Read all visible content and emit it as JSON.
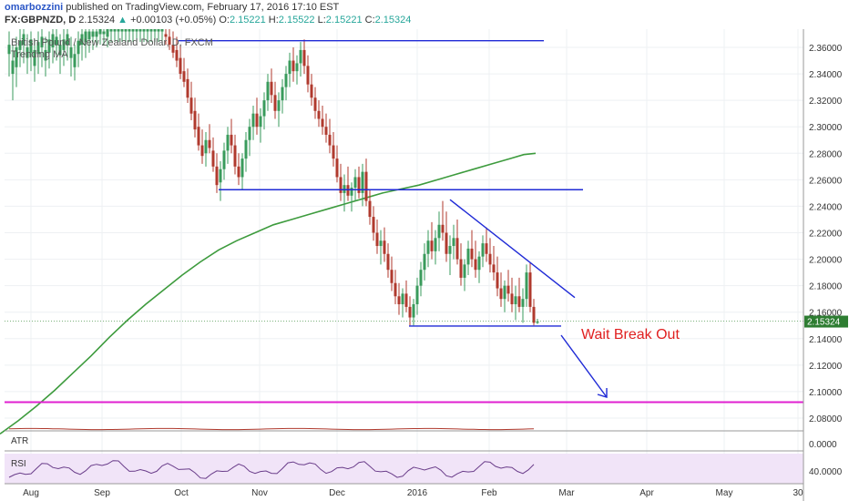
{
  "header": {
    "author": "omarbozzini",
    "published": "published on TradingView.com, February 17, 2016 17:10 EST",
    "symbol": "FX:GBPNZD, D",
    "last": "2.15324",
    "change": "+0.00103 (+0.05%)",
    "o_label": "O:",
    "o": "2.15221",
    "h_label": "H:",
    "h": "2.15522",
    "l_label": "L:",
    "l": "2.15221",
    "c_label": "C:",
    "c": "2.15324"
  },
  "colors": {
    "up": "#26a69a",
    "bull_candle": "#3a9b5c",
    "bear_candle": "#b03a2e",
    "ma": "#3d9b3d",
    "trendline": "#1f2ad6",
    "support_magenta": "#e020d0",
    "annotation": "#e02020",
    "price_tag": "#2e7d32",
    "rsi_band": "#f0e0f8"
  },
  "chart_data": {
    "type": "candlestick",
    "title": "British Pound / New Zealand Dollar, D, FXCM",
    "indicator_label": "Trending MA",
    "x_labels": [
      "Aug",
      "Sep",
      "Oct",
      "Nov",
      "Dec",
      "2016",
      "Feb",
      "Mar",
      "Apr",
      "May",
      "30"
    ],
    "y_ticks": [
      "2.36000",
      "2.34000",
      "2.32000",
      "2.30000",
      "2.28000",
      "2.26000",
      "2.24000",
      "2.22000",
      "2.20000",
      "2.18000",
      "2.16000",
      "2.14000",
      "2.12000",
      "2.10000",
      "2.08000"
    ],
    "ylim": [
      2.065,
      2.375
    ],
    "current_price_tag": "2.15324",
    "annotation": "Wait Break Out",
    "resistance_levels": [
      2.365,
      2.2525
    ],
    "support_level": 2.1495,
    "target_level": 2.092,
    "ma_points": [
      [
        0,
        2.068
      ],
      [
        20,
        2.078
      ],
      [
        40,
        2.089
      ],
      [
        60,
        2.101
      ],
      [
        80,
        2.114
      ],
      [
        100,
        2.127
      ],
      [
        120,
        2.141
      ],
      [
        140,
        2.154
      ],
      [
        160,
        2.166
      ],
      [
        180,
        2.177
      ],
      [
        200,
        2.188
      ],
      [
        220,
        2.198
      ],
      [
        240,
        2.207
      ],
      [
        260,
        2.214
      ],
      [
        280,
        2.22
      ],
      [
        300,
        2.226
      ],
      [
        320,
        2.23
      ],
      [
        340,
        2.234
      ],
      [
        360,
        2.238
      ],
      [
        380,
        2.242
      ],
      [
        400,
        2.246
      ],
      [
        420,
        2.25
      ],
      [
        440,
        2.253
      ],
      [
        460,
        2.256
      ],
      [
        480,
        2.26
      ],
      [
        500,
        2.264
      ],
      [
        520,
        2.268
      ],
      [
        540,
        2.272
      ],
      [
        560,
        2.276
      ],
      [
        575,
        2.279
      ],
      [
        588,
        2.28
      ]
    ],
    "candles": [
      [
        10,
        2.355,
        2.372,
        2.338,
        2.362
      ],
      [
        14,
        2.34,
        2.362,
        2.32,
        2.35
      ],
      [
        18,
        2.345,
        2.368,
        2.33,
        2.36
      ],
      [
        22,
        2.358,
        2.375,
        2.345,
        2.365
      ],
      [
        26,
        2.362,
        2.376,
        2.348,
        2.37
      ],
      [
        30,
        2.352,
        2.37,
        2.34,
        2.36
      ],
      [
        34,
        2.356,
        2.372,
        2.342,
        2.366
      ],
      [
        38,
        2.346,
        2.366,
        2.334,
        2.358
      ],
      [
        42,
        2.355,
        2.372,
        2.34,
        2.364
      ],
      [
        46,
        2.36,
        2.376,
        2.345,
        2.368
      ],
      [
        50,
        2.35,
        2.368,
        2.338,
        2.358
      ],
      [
        54,
        2.356,
        2.372,
        2.344,
        2.366
      ],
      [
        58,
        2.36,
        2.375,
        2.348,
        2.37
      ],
      [
        62,
        2.362,
        2.376,
        2.35,
        2.368
      ],
      [
        66,
        2.354,
        2.37,
        2.34,
        2.362
      ],
      [
        70,
        2.358,
        2.374,
        2.346,
        2.366
      ],
      [
        74,
        2.362,
        2.376,
        2.35,
        2.37
      ],
      [
        78,
        2.352,
        2.368,
        2.338,
        2.36
      ],
      [
        82,
        2.345,
        2.362,
        2.335,
        2.355
      ],
      [
        86,
        2.355,
        2.372,
        2.345,
        2.365
      ],
      [
        90,
        2.362,
        2.376,
        2.35,
        2.37
      ],
      [
        94,
        2.364,
        2.376,
        2.352,
        2.372
      ],
      [
        98,
        2.366,
        2.376,
        2.356,
        2.372
      ],
      [
        102,
        2.368,
        2.376,
        2.358,
        2.372
      ],
      [
        106,
        2.368,
        2.376,
        2.36,
        2.372
      ],
      [
        110,
        2.37,
        2.376,
        2.362,
        2.374
      ],
      [
        114,
        2.37,
        2.376,
        2.362,
        2.372
      ],
      [
        118,
        2.368,
        2.376,
        2.36,
        2.374
      ],
      [
        122,
        2.372,
        2.376,
        2.364,
        2.374
      ],
      [
        126,
        2.372,
        2.376,
        2.364,
        2.374
      ],
      [
        130,
        2.372,
        2.376,
        2.364,
        2.374
      ],
      [
        134,
        2.372,
        2.376,
        2.364,
        2.374
      ],
      [
        138,
        2.372,
        2.376,
        2.364,
        2.374
      ],
      [
        142,
        2.372,
        2.376,
        2.364,
        2.374
      ],
      [
        146,
        2.372,
        2.376,
        2.364,
        2.374
      ],
      [
        150,
        2.372,
        2.376,
        2.364,
        2.374
      ],
      [
        154,
        2.372,
        2.376,
        2.364,
        2.374
      ],
      [
        158,
        2.372,
        2.376,
        2.364,
        2.374
      ],
      [
        162,
        2.372,
        2.376,
        2.364,
        2.374
      ],
      [
        166,
        2.372,
        2.376,
        2.364,
        2.374
      ],
      [
        170,
        2.372,
        2.376,
        2.364,
        2.374
      ],
      [
        174,
        2.372,
        2.376,
        2.364,
        2.374
      ],
      [
        178,
        2.372,
        2.376,
        2.364,
        2.374
      ],
      [
        182,
        2.37,
        2.376,
        2.362,
        2.368
      ],
      [
        186,
        2.368,
        2.376,
        2.358,
        2.362
      ],
      [
        190,
        2.362,
        2.372,
        2.352,
        2.356
      ],
      [
        194,
        2.358,
        2.368,
        2.345,
        2.35
      ],
      [
        198,
        2.352,
        2.362,
        2.336,
        2.34
      ],
      [
        202,
        2.342,
        2.352,
        2.33,
        2.334
      ],
      [
        206,
        2.336,
        2.344,
        2.318,
        2.322
      ],
      [
        210,
        2.322,
        2.334,
        2.305,
        2.31
      ],
      [
        214,
        2.312,
        2.322,
        2.292,
        2.298
      ],
      [
        218,
        2.3,
        2.31,
        2.282,
        2.286
      ],
      [
        222,
        2.286,
        2.298,
        2.272,
        2.278
      ],
      [
        226,
        2.28,
        2.296,
        2.27,
        2.29
      ],
      [
        230,
        2.29,
        2.302,
        2.28,
        2.284
      ],
      [
        234,
        2.282,
        2.292,
        2.266,
        2.27
      ],
      [
        238,
        2.27,
        2.28,
        2.25,
        2.256
      ],
      [
        242,
        2.258,
        2.274,
        2.244,
        2.268
      ],
      [
        246,
        2.268,
        2.288,
        2.26,
        2.282
      ],
      [
        250,
        2.282,
        2.3,
        2.272,
        2.294
      ],
      [
        254,
        2.294,
        2.306,
        2.28,
        2.286
      ],
      [
        258,
        2.286,
        2.294,
        2.264,
        2.27
      ],
      [
        262,
        2.27,
        2.28,
        2.256,
        2.262
      ],
      [
        266,
        2.262,
        2.28,
        2.252,
        2.276
      ],
      [
        270,
        2.276,
        2.296,
        2.266,
        2.29
      ],
      [
        274,
        2.29,
        2.306,
        2.278,
        2.3
      ],
      [
        278,
        2.3,
        2.316,
        2.29,
        2.31
      ],
      [
        282,
        2.31,
        2.322,
        2.294,
        2.3
      ],
      [
        286,
        2.3,
        2.314,
        2.288,
        2.308
      ],
      [
        290,
        2.308,
        2.326,
        2.298,
        2.32
      ],
      [
        294,
        2.32,
        2.34,
        2.312,
        2.334
      ],
      [
        298,
        2.334,
        2.344,
        2.318,
        2.324
      ],
      [
        302,
        2.324,
        2.334,
        2.306,
        2.312
      ],
      [
        306,
        2.312,
        2.326,
        2.3,
        2.32
      ],
      [
        310,
        2.32,
        2.336,
        2.31,
        2.33
      ],
      [
        314,
        2.33,
        2.346,
        2.32,
        2.34
      ],
      [
        318,
        2.34,
        2.356,
        2.33,
        2.35
      ],
      [
        322,
        2.35,
        2.36,
        2.334,
        2.342
      ],
      [
        326,
        2.342,
        2.354,
        2.332,
        2.348
      ],
      [
        330,
        2.348,
        2.364,
        2.338,
        2.358
      ],
      [
        334,
        2.358,
        2.366,
        2.34,
        2.346
      ],
      [
        338,
        2.346,
        2.354,
        2.326,
        2.332
      ],
      [
        342,
        2.332,
        2.34,
        2.316,
        2.322
      ],
      [
        346,
        2.322,
        2.33,
        2.306,
        2.312
      ],
      [
        350,
        2.312,
        2.32,
        2.3,
        2.306
      ],
      [
        354,
        2.306,
        2.316,
        2.294,
        2.3
      ],
      [
        358,
        2.3,
        2.31,
        2.288,
        2.294
      ],
      [
        362,
        2.294,
        2.306,
        2.28,
        2.286
      ],
      [
        366,
        2.286,
        2.296,
        2.27,
        2.276
      ],
      [
        370,
        2.276,
        2.286,
        2.258,
        2.262
      ],
      [
        374,
        2.262,
        2.272,
        2.244,
        2.25
      ],
      [
        378,
        2.25,
        2.264,
        2.236,
        2.256
      ],
      [
        382,
        2.256,
        2.27,
        2.244,
        2.248
      ],
      [
        386,
        2.248,
        2.258,
        2.236,
        2.254
      ],
      [
        390,
        2.254,
        2.268,
        2.244,
        2.262
      ],
      [
        394,
        2.262,
        2.27,
        2.246,
        2.25
      ],
      [
        398,
        2.25,
        2.272,
        2.24,
        2.266
      ],
      [
        402,
        2.266,
        2.276,
        2.24,
        2.244
      ],
      [
        406,
        2.244,
        2.252,
        2.226,
        2.232
      ],
      [
        410,
        2.232,
        2.24,
        2.214,
        2.22
      ],
      [
        414,
        2.22,
        2.23,
        2.204,
        2.21
      ],
      [
        418,
        2.21,
        2.222,
        2.196,
        2.214
      ],
      [
        422,
        2.214,
        2.224,
        2.198,
        2.204
      ],
      [
        426,
        2.204,
        2.212,
        2.186,
        2.192
      ],
      [
        430,
        2.192,
        2.202,
        2.176,
        2.182
      ],
      [
        434,
        2.182,
        2.192,
        2.166,
        2.172
      ],
      [
        438,
        2.172,
        2.182,
        2.158,
        2.166
      ],
      [
        442,
        2.166,
        2.178,
        2.156,
        2.174
      ],
      [
        446,
        2.174,
        2.184,
        2.16,
        2.164
      ],
      [
        450,
        2.164,
        2.172,
        2.15,
        2.156
      ],
      [
        454,
        2.156,
        2.17,
        2.15,
        2.166
      ],
      [
        458,
        2.166,
        2.186,
        2.158,
        2.18
      ],
      [
        462,
        2.18,
        2.198,
        2.172,
        2.192
      ],
      [
        466,
        2.192,
        2.212,
        2.184,
        2.204
      ],
      [
        470,
        2.204,
        2.222,
        2.194,
        2.214
      ],
      [
        474,
        2.214,
        2.228,
        2.2,
        2.206
      ],
      [
        478,
        2.206,
        2.222,
        2.196,
        2.216
      ],
      [
        482,
        2.216,
        2.236,
        2.206,
        2.226
      ],
      [
        486,
        2.226,
        2.244,
        2.214,
        2.22
      ],
      [
        490,
        2.22,
        2.236,
        2.198,
        2.204
      ],
      [
        494,
        2.204,
        2.218,
        2.188,
        2.21
      ],
      [
        498,
        2.21,
        2.226,
        2.2,
        2.216
      ],
      [
        502,
        2.216,
        2.23,
        2.196,
        2.2
      ],
      [
        506,
        2.2,
        2.212,
        2.18,
        2.186
      ],
      [
        510,
        2.186,
        2.2,
        2.176,
        2.196
      ],
      [
        514,
        2.196,
        2.214,
        2.188,
        2.208
      ],
      [
        518,
        2.208,
        2.222,
        2.194,
        2.2
      ],
      [
        522,
        2.2,
        2.214,
        2.186,
        2.192
      ],
      [
        526,
        2.192,
        2.206,
        2.182,
        2.202
      ],
      [
        530,
        2.202,
        2.218,
        2.194,
        2.212
      ],
      [
        534,
        2.212,
        2.224,
        2.198,
        2.204
      ],
      [
        538,
        2.204,
        2.216,
        2.19,
        2.196
      ],
      [
        542,
        2.196,
        2.21,
        2.184,
        2.19
      ],
      [
        546,
        2.19,
        2.202,
        2.172,
        2.178
      ],
      [
        550,
        2.178,
        2.19,
        2.164,
        2.17
      ],
      [
        554,
        2.17,
        2.184,
        2.16,
        2.18
      ],
      [
        558,
        2.18,
        2.192,
        2.168,
        2.174
      ],
      [
        562,
        2.174,
        2.186,
        2.16,
        2.166
      ],
      [
        566,
        2.166,
        2.18,
        2.154,
        2.172
      ],
      [
        570,
        2.172,
        2.186,
        2.16,
        2.164
      ],
      [
        574,
        2.164,
        2.178,
        2.152,
        2.17
      ],
      [
        578,
        2.17,
        2.196,
        2.164,
        2.19
      ],
      [
        582,
        2.19,
        2.198,
        2.16,
        2.164
      ],
      [
        586,
        2.164,
        2.17,
        2.15,
        2.152
      ],
      [
        590,
        2.152,
        2.155,
        2.151,
        2.153
      ]
    ],
    "atr": {
      "label": "ATR",
      "y_ticks": [
        "0.0000"
      ]
    },
    "rsi": {
      "label": "RSI",
      "y_ticks": [
        "40.0000"
      ]
    }
  }
}
